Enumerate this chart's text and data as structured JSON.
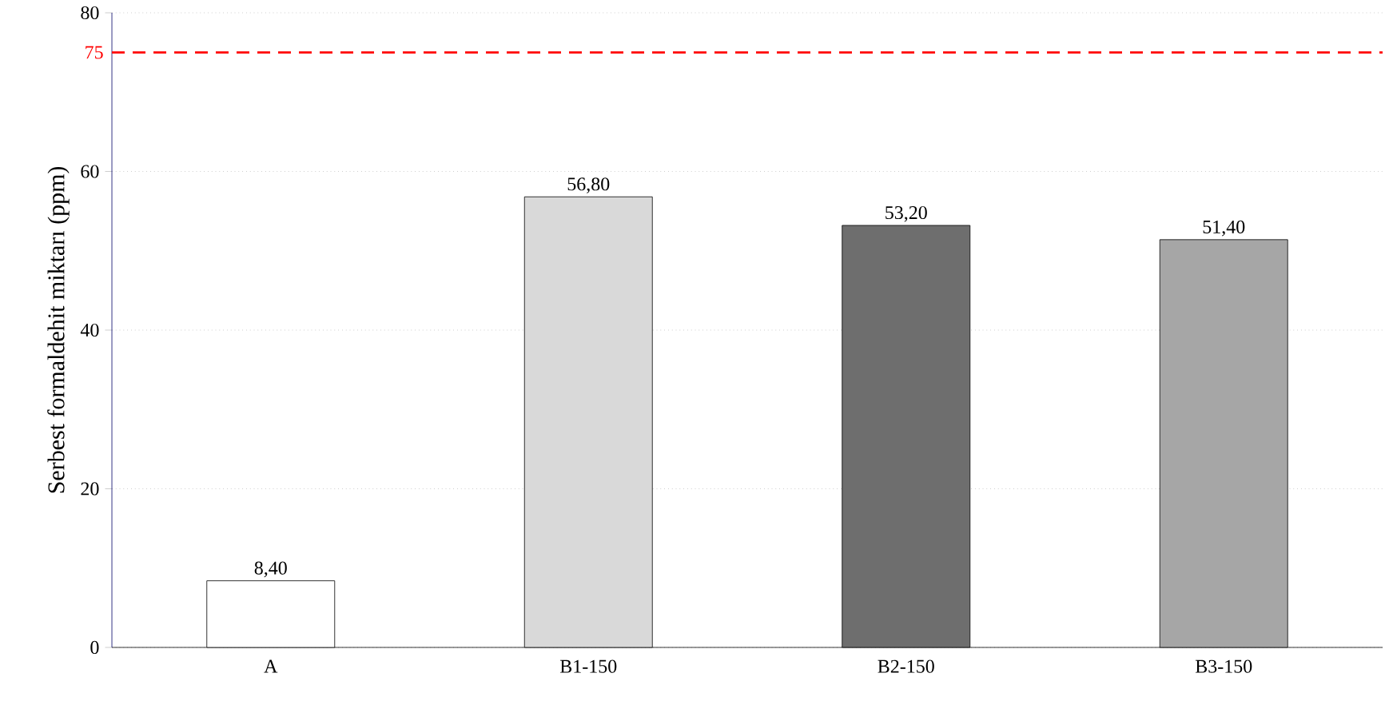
{
  "chart_data": {
    "type": "bar",
    "ylabel": "Serbest formaldehit miktarı (ppm)",
    "categories": [
      "A",
      "B1-150",
      "B2-150",
      "B3-150"
    ],
    "values": [
      8.4,
      56.8,
      53.2,
      51.4
    ],
    "value_labels": [
      "8,40",
      "56,80",
      "53,20",
      "51,40"
    ],
    "colors": [
      "#ffffff",
      "#d9d9d9",
      "#6e6e6e",
      "#a6a6a6"
    ],
    "ylim": [
      0,
      80
    ],
    "yticks": [
      0,
      20,
      40,
      60,
      80
    ],
    "grid": "y",
    "ref_lines": [
      {
        "axis": "y",
        "value": 75,
        "label": "75",
        "color": "#ff0000",
        "line_style": "dashed"
      }
    ]
  }
}
